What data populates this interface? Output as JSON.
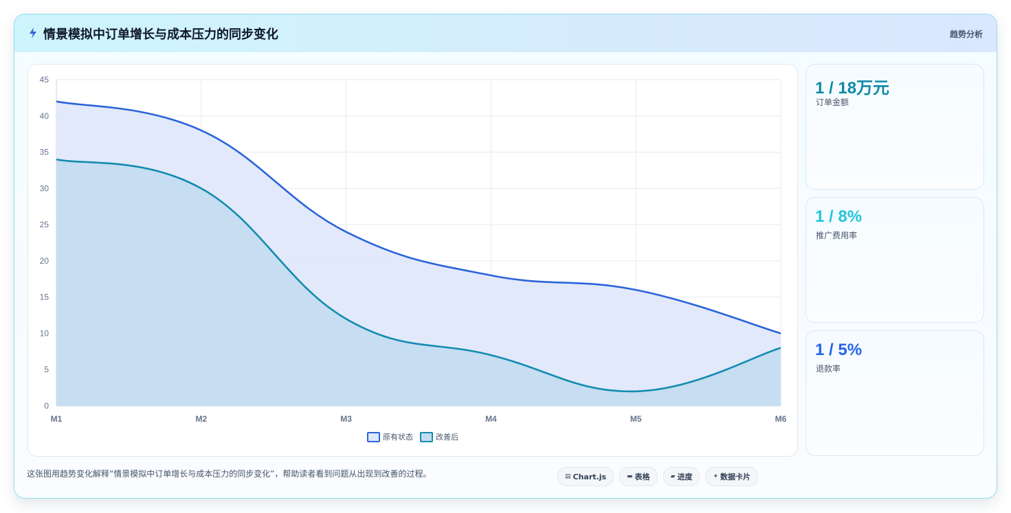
{
  "header": {
    "title": "情景模拟中订单增长与成本压力的同步变化",
    "tag": "趋势分析"
  },
  "chart_data": {
    "type": "area",
    "categories": [
      "M1",
      "M2",
      "M3",
      "M4",
      "M5",
      "M6"
    ],
    "series": [
      {
        "name": "原有状态",
        "values": [
          42,
          38,
          24,
          18,
          16,
          10
        ],
        "color": "#2b63d9",
        "fill": "#dfe8fa"
      },
      {
        "name": "改善后",
        "values": [
          34,
          30,
          12,
          7,
          2,
          8
        ],
        "color": "#128bb0",
        "fill": "#c4dcf1"
      }
    ],
    "ylim": [
      0,
      45
    ],
    "yticks": [
      0,
      5,
      10,
      15,
      20,
      25,
      30,
      35,
      40,
      45
    ],
    "grid": true,
    "legend": "bottom-center"
  },
  "stats": [
    {
      "value": "1 / 18万元",
      "label": "订单金额",
      "color": "#0e8aa6"
    },
    {
      "value": "1 / 8%",
      "label": "推广费用率",
      "color": "#22c5db"
    },
    {
      "value": "1 / 5%",
      "label": "退款率",
      "color": "#2563eb"
    }
  ],
  "footer": {
    "description": "这张图用趋势变化解释“情景模拟中订单增长与成本压力的同步变化”，帮助读者看到问题从出现到改善的过程。",
    "chips": [
      {
        "icon": "▤",
        "label": "Chart.js"
      },
      {
        "icon": "▬",
        "label": "表格"
      },
      {
        "icon": "▰",
        "label": "进度"
      },
      {
        "icon": "✦",
        "label": "数据卡片"
      }
    ]
  }
}
